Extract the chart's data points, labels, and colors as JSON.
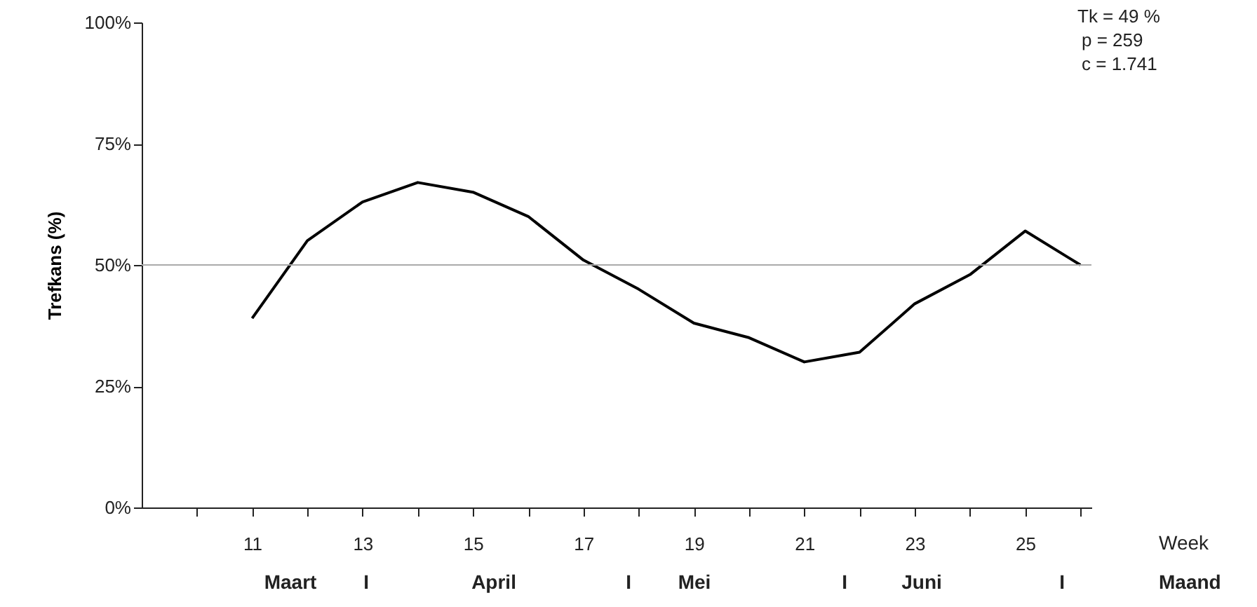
{
  "chart_data": {
    "type": "line",
    "ylabel": "Trefkans (%)",
    "xlabel": "Week",
    "x": [
      11,
      12,
      13,
      14,
      15,
      16,
      17,
      18,
      19,
      20,
      21,
      22,
      23,
      24,
      25,
      26
    ],
    "series": [
      {
        "color": "#000000",
        "values": [
          39,
          55,
          63,
          67,
          65,
          60,
          51,
          45,
          38,
          35,
          30,
          32,
          42,
          48,
          57,
          50
        ]
      }
    ],
    "xlim": [
      9,
      26.2
    ],
    "xticks": [
      {
        "value": 10,
        "label": null
      },
      11,
      {
        "value": 12,
        "label": null
      },
      13,
      {
        "value": 14,
        "label": null
      },
      15,
      {
        "value": 16,
        "label": null
      },
      17,
      {
        "value": 18,
        "label": null
      },
      19,
      {
        "value": 20,
        "label": null
      },
      21,
      {
        "value": 22,
        "label": null
      },
      23,
      {
        "value": 24,
        "label": null
      },
      25,
      {
        "value": 26,
        "label": null
      }
    ],
    "ylim": [
      0,
      100
    ],
    "yticks": [
      {
        "value": 0,
        "label": "0%"
      },
      {
        "value": 25,
        "label": "25%"
      },
      {
        "value": 50,
        "label": "50%"
      },
      {
        "value": 75,
        "label": "75%"
      },
      {
        "value": 100,
        "label": "100%"
      }
    ],
    "ref_lines": [
      {
        "axis": "y",
        "value": 50,
        "color": "#aaaaaa"
      }
    ],
    "annotations": [
      "Tk = 49 %",
      "p = 259",
      "c = 1.741",
      "Maart",
      "I",
      "April",
      "I",
      "Mei",
      "I",
      "Juni",
      "I",
      "Maand"
    ],
    "grid": false,
    "marker": "none",
    "line_style": "solid"
  }
}
